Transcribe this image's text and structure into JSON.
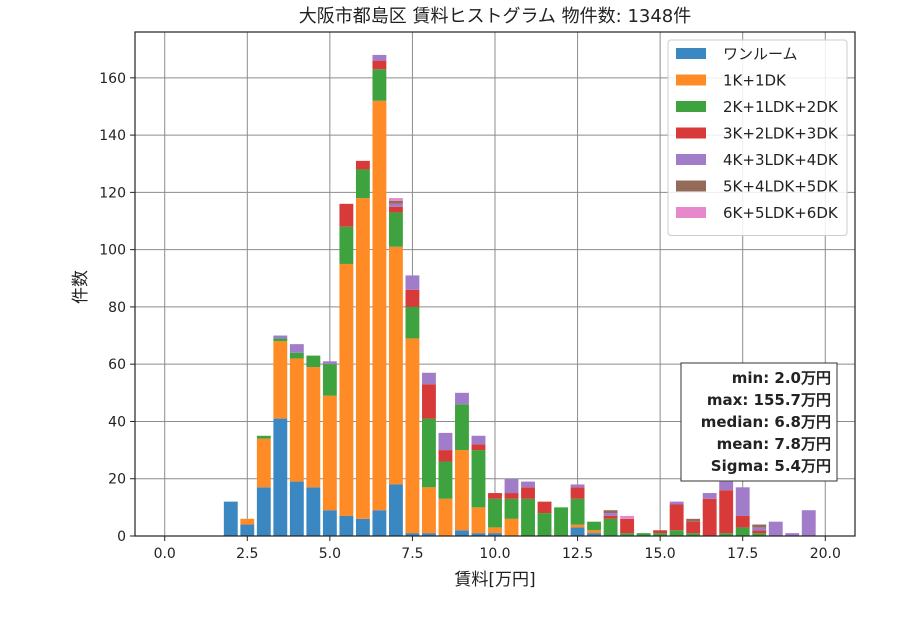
{
  "chart_data": {
    "type": "bar",
    "stacked": true,
    "title": "大阪市都島区 賃料ヒストグラム 物件数: 1348件",
    "xlabel": "賃料[万円]",
    "ylabel": "件数",
    "xlim": [
      -0.9,
      20.9
    ],
    "ylim": [
      0,
      176
    ],
    "xticks": [
      0.0,
      2.5,
      5.0,
      7.5,
      10.0,
      12.5,
      15.0,
      17.5,
      20.0
    ],
    "yticks": [
      0,
      20,
      40,
      60,
      80,
      100,
      120,
      140,
      160
    ],
    "xtick_labels": [
      "0.0",
      "2.5",
      "5.0",
      "7.5",
      "10.0",
      "12.5",
      "15.0",
      "17.5",
      "20.0"
    ],
    "ytick_labels": [
      "0",
      "20",
      "40",
      "60",
      "80",
      "100",
      "120",
      "140",
      "160"
    ],
    "grid": true,
    "legend_position": "top-right",
    "bin_width": 0.5,
    "bin_centers": [
      2.0,
      2.5,
      3.0,
      3.5,
      4.0,
      4.5,
      5.0,
      5.5,
      6.0,
      6.5,
      7.0,
      7.5,
      8.0,
      8.5,
      9.0,
      9.5,
      10.0,
      10.5,
      11.0,
      11.5,
      12.0,
      12.5,
      13.0,
      13.5,
      14.0,
      14.5,
      15.0,
      15.5,
      16.0,
      16.5,
      17.0,
      17.5,
      18.0,
      18.5,
      19.0,
      19.5
    ],
    "series": [
      {
        "name": "ワンルーム",
        "color": "#3a87c1",
        "values": [
          12,
          4,
          17,
          41,
          19,
          17,
          9,
          7,
          6,
          9,
          18,
          1,
          1,
          0,
          2,
          1,
          1,
          0,
          0,
          0,
          0,
          3,
          1,
          0,
          0,
          0,
          0,
          0,
          0,
          0,
          0,
          0,
          0,
          0,
          0,
          0
        ]
      },
      {
        "name": "1K+1DK",
        "color": "#ff8b27",
        "values": [
          0,
          2,
          17,
          27,
          43,
          42,
          40,
          88,
          112,
          143,
          83,
          68,
          16,
          13,
          28,
          9,
          2,
          6,
          0,
          0,
          0,
          1,
          1,
          0,
          0,
          0,
          0,
          0,
          0,
          0,
          0,
          0,
          0,
          0,
          0,
          0
        ]
      },
      {
        "name": "2K+1LDK+2DK",
        "color": "#3ea33e",
        "values": [
          0,
          0,
          1,
          1,
          2,
          4,
          11,
          13,
          10,
          11,
          12,
          11,
          24,
          13,
          16,
          20,
          10,
          7,
          13,
          8,
          10,
          9,
          3,
          6,
          1,
          1,
          1,
          2,
          1,
          0,
          1,
          3,
          1,
          0,
          0,
          0
        ]
      },
      {
        "name": "3K+2LDK+3DK",
        "color": "#d83a3a",
        "values": [
          0,
          0,
          0,
          0,
          0,
          0,
          0,
          8,
          3,
          3,
          2,
          6,
          12,
          4,
          0,
          2,
          2,
          2,
          4,
          4,
          0,
          4,
          0,
          1,
          5,
          0,
          1,
          9,
          4,
          13,
          15,
          4,
          1,
          0,
          0,
          0
        ]
      },
      {
        "name": "4K+3LDK+4DK",
        "color": "#a17cc8",
        "values": [
          0,
          0,
          0,
          1,
          3,
          0,
          1,
          0,
          0,
          2,
          1,
          5,
          4,
          6,
          4,
          3,
          0,
          5,
          2,
          0,
          0,
          1,
          0,
          1,
          0,
          0,
          0,
          1,
          0,
          2,
          3,
          10,
          1,
          5,
          1,
          9
        ]
      },
      {
        "name": "5K+4LDK+5DK",
        "color": "#946a59",
        "values": [
          0,
          0,
          0,
          0,
          0,
          0,
          0,
          0,
          0,
          0,
          1,
          0,
          0,
          0,
          0,
          0,
          0,
          0,
          0,
          0,
          0,
          0,
          0,
          1,
          0,
          0,
          0,
          0,
          1,
          0,
          0,
          0,
          1,
          0,
          0,
          0
        ]
      },
      {
        "name": "6K+5LDK+6DK",
        "color": "#e888cc",
        "values": [
          0,
          0,
          0,
          0,
          0,
          0,
          0,
          0,
          0,
          0,
          1,
          0,
          0,
          0,
          0,
          0,
          0,
          0,
          0,
          0,
          0,
          0,
          0,
          0,
          1,
          0,
          0,
          0,
          0,
          0,
          0,
          0,
          0,
          0,
          0,
          0
        ]
      }
    ],
    "stats_box": [
      "min: 2.0万円",
      "max: 155.7万円",
      "median: 6.8万円",
      "mean: 7.8万円",
      "Sigma: 5.4万円"
    ]
  }
}
